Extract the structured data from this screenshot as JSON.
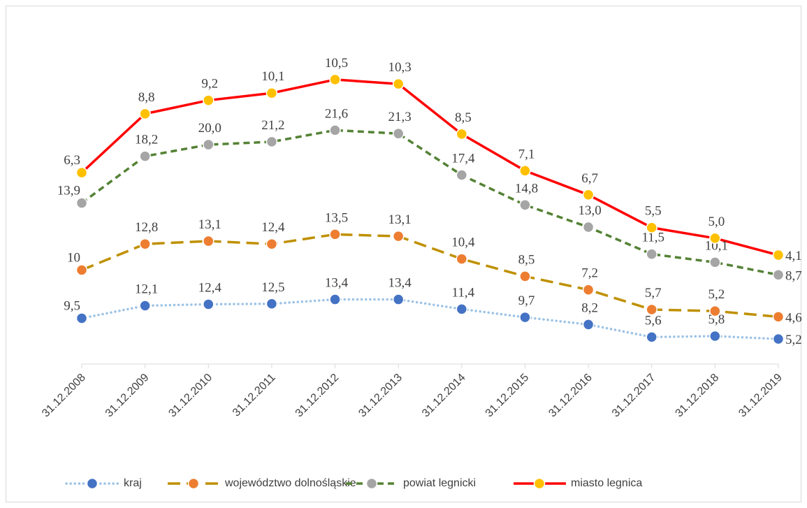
{
  "chart_data": {
    "type": "line",
    "stacked": true,
    "categories": [
      "31.12.2008",
      "31.12.2009",
      "31.12.2010",
      "31.12.2011",
      "31.12.2012",
      "31.12.2013",
      "31.12.2014",
      "31.12.2015",
      "31.12.2016",
      "31.12.2017",
      "31.12.2018",
      "31.12.2019"
    ],
    "ylim": [
      0,
      70
    ],
    "series": [
      {
        "name": "kraj",
        "color": "#9dc3e6",
        "marker_color": "#4472c4",
        "dash": "dotted",
        "values": [
          9.5,
          12.1,
          12.4,
          12.5,
          13.4,
          13.4,
          11.4,
          9.7,
          8.2,
          5.6,
          5.8,
          5.2
        ],
        "value_labels": [
          "9,5",
          "12,1",
          "12,4",
          "12,5",
          "13,4",
          "13,4",
          "11,4",
          "9,7",
          "8,2",
          "5,6",
          "5,8",
          "5,2"
        ]
      },
      {
        "name": "województwo dolnośląskie",
        "color": "#bf9000",
        "marker_color": "#ed7d31",
        "dash": "long-dash",
        "values": [
          10,
          12.8,
          13.1,
          12.4,
          13.5,
          13.1,
          10.4,
          8.5,
          7.2,
          5.7,
          5.2,
          4.6
        ],
        "value_labels": [
          "10",
          "12,8",
          "13,1",
          "12,4",
          "13,5",
          "13,1",
          "10,4",
          "8,5",
          "7,2",
          "5,7",
          "5,2",
          "4,6"
        ]
      },
      {
        "name": "powiat legnicki",
        "color": "#548235",
        "marker_color": "#a5a5a5",
        "dash": "dash",
        "values": [
          13.9,
          18.2,
          20.0,
          21.2,
          21.6,
          21.3,
          17.4,
          14.8,
          13.0,
          11.5,
          10.1,
          8.7
        ],
        "value_labels": [
          "13,9",
          "18,2",
          "20,0",
          "21,2",
          "21,6",
          "21,3",
          "17,4",
          "14,8",
          "13,0",
          "11,5",
          "10,1",
          "8,7"
        ]
      },
      {
        "name": "miasto legnica",
        "color": "#ff0000",
        "marker_color": "#ffc000",
        "dash": "solid",
        "values": [
          6.3,
          8.8,
          9.2,
          10.1,
          10.5,
          10.3,
          8.5,
          7.1,
          6.7,
          5.5,
          5.0,
          4.1
        ],
        "value_labels": [
          "6,3",
          "8,8",
          "9,2",
          "10,1",
          "10,5",
          "10,3",
          "8,5",
          "7,1",
          "6,7",
          "5,5",
          "5,0",
          "4,1"
        ]
      }
    ]
  }
}
